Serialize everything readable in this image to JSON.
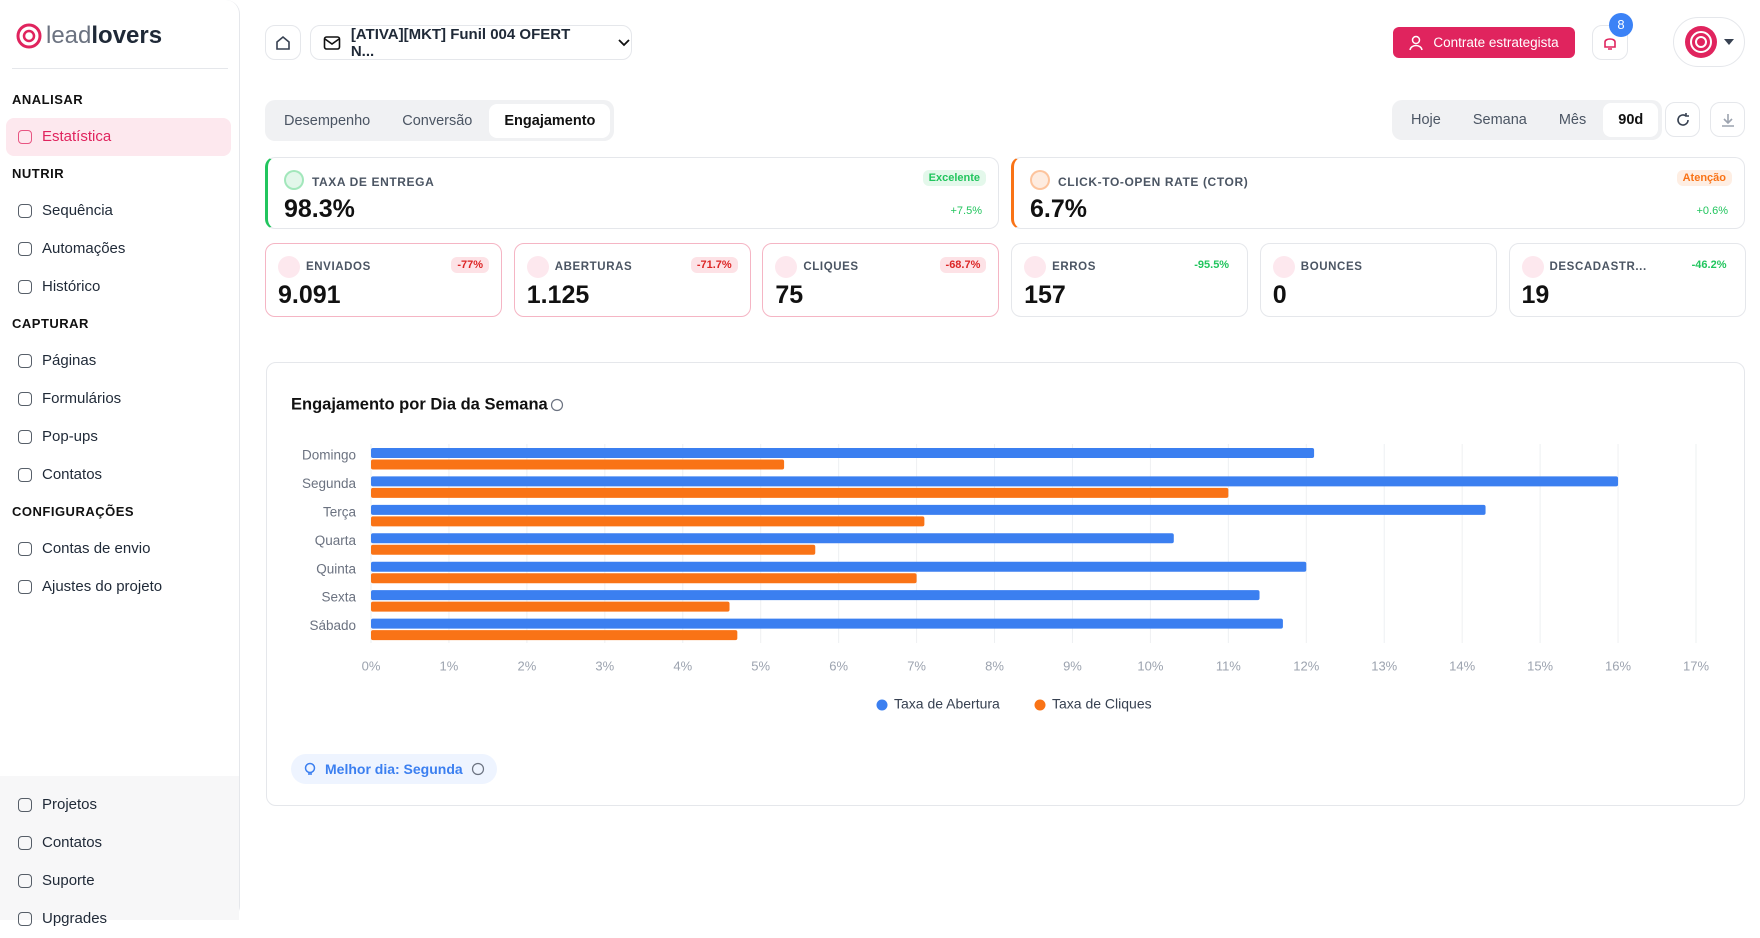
{
  "sidebar": {
    "logo": [
      "lead",
      "lovers"
    ],
    "sections": [
      {
        "title": "ANALISAR",
        "items": [
          "Estatística"
        ]
      },
      {
        "title": "NUTRIR",
        "items": [
          "Sequência",
          "Automações",
          "Histórico"
        ]
      },
      {
        "title": "CAPTURAR",
        "items": [
          "Páginas",
          "Formulários",
          "Pop-ups",
          "Contatos"
        ]
      },
      {
        "title": "CONFIGURAÇÕES",
        "items": [
          "Contas de envio",
          "Ajustes do projeto"
        ]
      }
    ],
    "footer": [
      "Projetos",
      "Contatos",
      "Suporte",
      "Upgrades"
    ]
  },
  "header": {
    "funnel": "[ATIVA][MKT] Funil 004 OFERT N...",
    "cta": "Contrate estrategista",
    "notifications": "8"
  },
  "tabs": [
    "Desempenho",
    "Conversão",
    "Engajamento"
  ],
  "periods": [
    "Hoje",
    "Semana",
    "Mês",
    "90d"
  ],
  "highlights": [
    {
      "label": "TAXA DE ENTREGA",
      "value": "98.3%",
      "badge": "Excelente",
      "change": "+7.5%",
      "color": "#22c55e"
    },
    {
      "label": "CLICK-TO-OPEN RATE (CTOR)",
      "value": "6.7%",
      "badge": "Atenção",
      "change": "+0.6%",
      "color": "#f97316"
    }
  ],
  "metrics": [
    {
      "label": "ENVIADOS",
      "value": "9.091",
      "change": "-77%",
      "status": "bad"
    },
    {
      "label": "ABERTURAS",
      "value": "1.125",
      "change": "-71.7%",
      "status": "bad"
    },
    {
      "label": "CLIQUES",
      "value": "75",
      "change": "-68.7%",
      "status": "bad"
    },
    {
      "label": "ERROS",
      "value": "157",
      "change": "-95.5%",
      "status": "good"
    },
    {
      "label": "BOUNCES",
      "value": "0",
      "status": "good"
    },
    {
      "label": "DESCADASTR...",
      "value": "19",
      "change": "-46.2%",
      "status": "good"
    }
  ],
  "chart_data": {
    "type": "bar",
    "orientation": "horizontal",
    "title": "Engajamento por Dia da Semana",
    "categories": [
      "Domingo",
      "Segunda",
      "Terça",
      "Quarta",
      "Quinta",
      "Sexta",
      "Sábado"
    ],
    "series": [
      {
        "name": "Taxa de Abertura",
        "color": "#3b7ff0",
        "values": [
          12.1,
          16.0,
          14.3,
          10.3,
          12.0,
          11.4,
          11.7
        ]
      },
      {
        "name": "Taxa de Cliques",
        "color": "#f97316",
        "values": [
          5.3,
          11.0,
          7.1,
          5.7,
          7.0,
          4.6,
          4.7
        ]
      }
    ],
    "xlim": [
      0,
      17
    ],
    "xticks": [
      {
        "value": 0,
        "label": "0%"
      },
      {
        "value": 1,
        "label": "1%"
      },
      {
        "value": 2,
        "label": "2%"
      },
      {
        "value": 3,
        "label": "3%"
      },
      {
        "value": 4,
        "label": "4%"
      },
      {
        "value": 5,
        "label": "5%"
      },
      {
        "value": 6,
        "label": "6%"
      },
      {
        "value": 7,
        "label": "7%"
      },
      {
        "value": 8,
        "label": "8%"
      },
      {
        "value": 9,
        "label": "9%"
      },
      {
        "value": 10,
        "label": "10%"
      },
      {
        "value": 11,
        "label": "11%"
      },
      {
        "value": 12,
        "label": "12%"
      },
      {
        "value": 13,
        "label": "13%"
      },
      {
        "value": 14,
        "label": "14%"
      },
      {
        "value": 15,
        "label": "15%"
      },
      {
        "value": 16,
        "label": "16%"
      },
      {
        "value": 17,
        "label": "17%"
      }
    ],
    "grid": true,
    "legend": "bottom"
  },
  "insight": "Melhor dia: Segunda"
}
